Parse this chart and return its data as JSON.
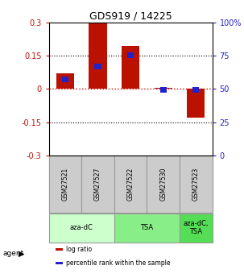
{
  "title": "GDS919 / 14225",
  "samples": [
    "GSM27521",
    "GSM27527",
    "GSM27522",
    "GSM27530",
    "GSM27523"
  ],
  "log_ratios": [
    0.07,
    0.295,
    0.195,
    0.003,
    -0.13
  ],
  "percentile_ranks_pct": [
    57,
    67,
    75,
    49,
    49
  ],
  "ylim_left": [
    -0.3,
    0.3
  ],
  "ylim_right": [
    0,
    100
  ],
  "yticks_left": [
    -0.3,
    -0.15,
    0,
    0.15,
    0.3
  ],
  "yticks_right": [
    0,
    25,
    50,
    75,
    100
  ],
  "ytick_labels_left": [
    "-0.3",
    "-0.15",
    "0",
    "0.15",
    "0.3"
  ],
  "ytick_labels_right": [
    "0",
    "25",
    "50",
    "75",
    "100%"
  ],
  "hlines": [
    0.15,
    -0.15
  ],
  "bar_width": 0.55,
  "blue_bar_width": 0.2,
  "blue_bar_height": 0.025,
  "red_color": "#BB1100",
  "blue_color": "#2222CC",
  "dashed_red_color": "#CC0000",
  "agent_groups": [
    {
      "label": "aza-dC",
      "indices": [
        0,
        1
      ],
      "color": "#CCFFCC"
    },
    {
      "label": "TSA",
      "indices": [
        2,
        3
      ],
      "color": "#88EE88"
    },
    {
      "label": "aza-dC,\nTSA",
      "indices": [
        4
      ],
      "color": "#55DD55"
    }
  ],
  "sample_box_color": "#CCCCCC",
  "sample_box_edge_color": "#999999",
  "legend_items": [
    {
      "color": "#BB1100",
      "label": "log ratio"
    },
    {
      "color": "#2222CC",
      "label": "percentile rank within the sample"
    }
  ],
  "bg_color": "#FFFFFF"
}
